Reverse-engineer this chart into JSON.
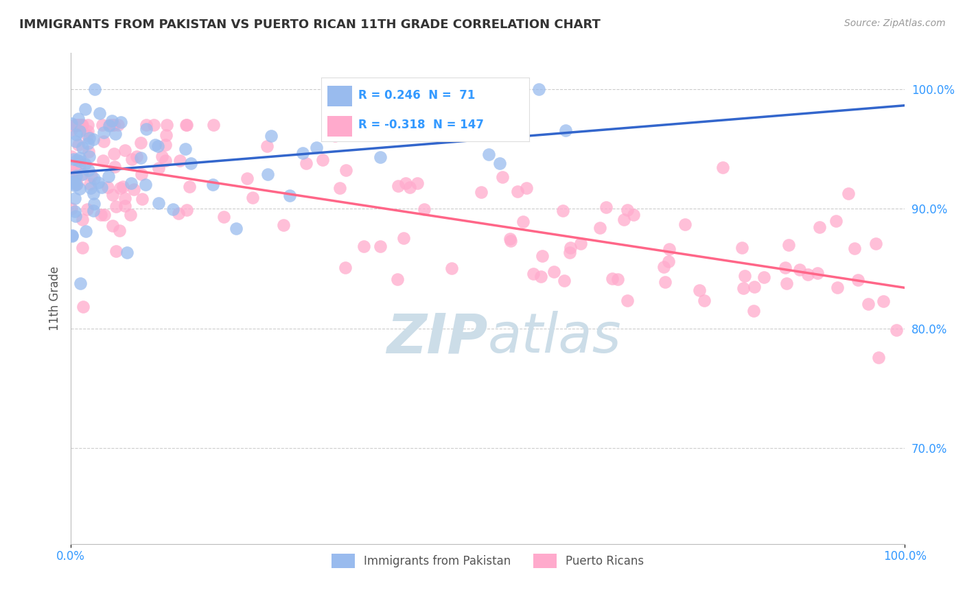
{
  "title": "IMMIGRANTS FROM PAKISTAN VS PUERTO RICAN 11TH GRADE CORRELATION CHART",
  "source_text": "Source: ZipAtlas.com",
  "ylabel": "11th Grade",
  "xlim": [
    0.0,
    100.0
  ],
  "ylim": [
    62.0,
    103.0
  ],
  "x_tick_labels": [
    "0.0%",
    "100.0%"
  ],
  "y_tick_values": [
    70.0,
    80.0,
    90.0,
    100.0
  ],
  "legend_labels": [
    "Immigrants from Pakistan",
    "Puerto Ricans"
  ],
  "blue_R": 0.246,
  "blue_N": 71,
  "pink_R": -0.318,
  "pink_N": 147,
  "blue_color": "#99BBEE",
  "pink_color": "#FFAACC",
  "blue_line_color": "#3366CC",
  "pink_line_color": "#FF6688",
  "title_color": "#333333",
  "axis_label_color": "#555555",
  "tick_label_color": "#3399FF",
  "grid_color": "#CCCCCC",
  "background_color": "#FFFFFF",
  "watermark_color": "#CCDDE8"
}
